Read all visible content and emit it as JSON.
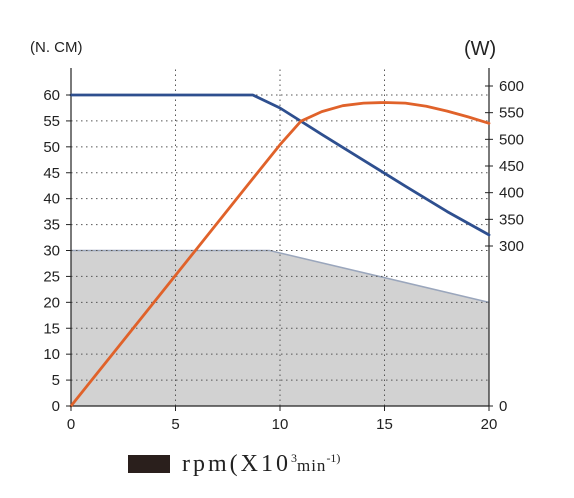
{
  "chart_data": {
    "type": "line",
    "title": "",
    "left_axis_unit": "(N. CM)",
    "right_axis_unit": "(W)",
    "x": {
      "ticks": [
        0,
        5,
        10,
        15,
        20
      ],
      "range": [
        0,
        20
      ]
    },
    "y_left": {
      "ticks": [
        0,
        5,
        10,
        15,
        20,
        25,
        30,
        35,
        40,
        45,
        50,
        55,
        60
      ],
      "range": [
        0,
        60
      ]
    },
    "y_right": {
      "ticks": [
        0,
        300,
        350,
        400,
        450,
        500,
        550,
        600
      ],
      "range": [
        0,
        600
      ]
    },
    "grid": true,
    "series": [
      {
        "axis": "left",
        "color": "#2e4f8f",
        "points": [
          [
            0,
            60
          ],
          [
            8.7,
            60
          ],
          [
            10,
            57.5
          ],
          [
            12,
            52.4
          ],
          [
            14,
            47.4
          ],
          [
            16,
            42.4
          ],
          [
            18,
            37.5
          ],
          [
            20,
            33
          ]
        ]
      },
      {
        "axis": "right",
        "color": "#e0622a",
        "points": [
          [
            0,
            0
          ],
          [
            2,
            98
          ],
          [
            4,
            196
          ],
          [
            6,
            294
          ],
          [
            8,
            392
          ],
          [
            10,
            490
          ],
          [
            11,
            534
          ],
          [
            12,
            552
          ],
          [
            13,
            563
          ],
          [
            14,
            568
          ],
          [
            15,
            569
          ],
          [
            16,
            568
          ],
          [
            17,
            562
          ],
          [
            18,
            553
          ],
          [
            19,
            542
          ],
          [
            20,
            530
          ]
        ]
      }
    ],
    "area": {
      "axis": "left",
      "color": "#d2d2d2",
      "edge_color": "#9aa6bc",
      "points": [
        [
          0,
          30
        ],
        [
          9.5,
          30
        ],
        [
          20,
          20
        ]
      ]
    }
  },
  "legend": {
    "text": "rpm(X10",
    "sup": "3",
    "rest": "min",
    "rest_sup": "-1)"
  }
}
